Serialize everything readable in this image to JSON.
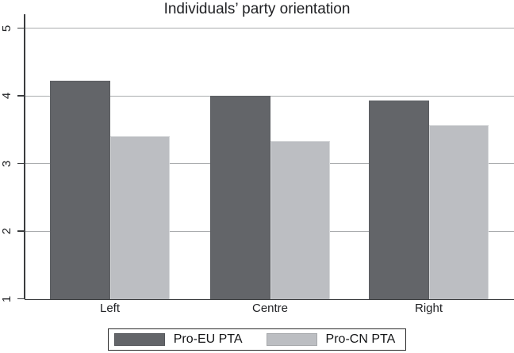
{
  "chart_data": {
    "type": "bar",
    "title": "Individuals’ party orientation",
    "categories": [
      "Left",
      "Centre",
      "Right"
    ],
    "series": [
      {
        "name": "Pro-EU PTA",
        "color": "#636569",
        "values": [
          4.22,
          4.0,
          3.93
        ]
      },
      {
        "name": "Pro-CN PTA",
        "color": "#bcbec2",
        "values": [
          3.41,
          3.33,
          3.57
        ]
      }
    ],
    "xlabel": "",
    "ylabel": "",
    "ylim": [
      1,
      5
    ],
    "yticks": [
      1,
      2,
      3,
      4,
      5
    ],
    "grid": true,
    "legend_position": "bottom-center",
    "colors": {
      "dark_bar": "#636569",
      "light_bar": "#bcbec2",
      "gridline": "#aaacae",
      "axis": "#3a3c3e",
      "text": "#1f2023"
    }
  }
}
